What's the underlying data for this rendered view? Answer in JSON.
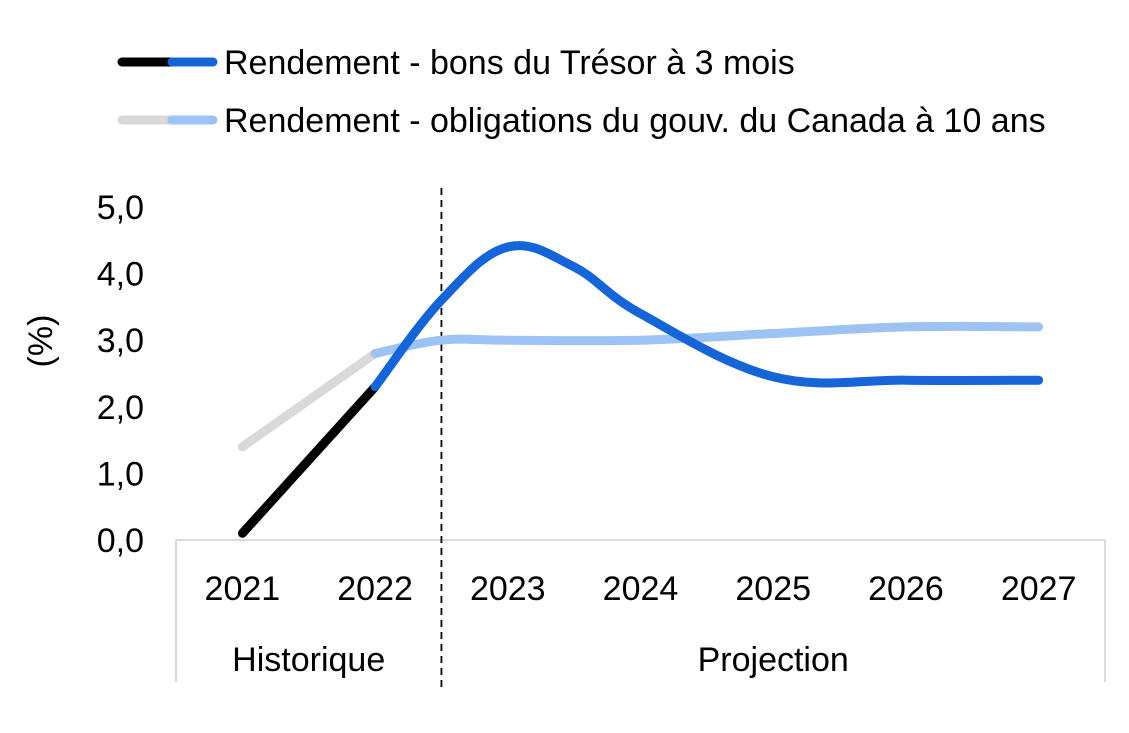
{
  "chart_data": {
    "type": "line",
    "ylabel": "(%)",
    "ylim": [
      0,
      5
    ],
    "yticks": [
      "0,0",
      "1,0",
      "2,0",
      "3,0",
      "4,0",
      "5,0"
    ],
    "categories": [
      "2021",
      "2022",
      "2023",
      "2024",
      "2025",
      "2026",
      "2027"
    ],
    "groups": [
      {
        "label": "Historique",
        "categories": [
          "2021",
          "2022"
        ]
      },
      {
        "label": "Projection",
        "categories": [
          "2023",
          "2024",
          "2025",
          "2026",
          "2027"
        ]
      }
    ],
    "series": [
      {
        "name": "Rendement - bons du Trésor à 3 mois",
        "historic_color": "#000000",
        "projection_color": "#1565d8",
        "x": [
          2021,
          2022,
          2022.5,
          2023,
          2023.5,
          2024,
          2025,
          2026,
          2027
        ],
        "values": [
          0.1,
          2.3,
          3.6,
          4.4,
          4.1,
          3.4,
          2.45,
          2.4,
          2.4
        ]
      },
      {
        "name": "Rendement - obligations du gouv. du Canada à 10 ans",
        "historic_color": "#d9d9d9",
        "projection_color": "#9dc3f5",
        "x": [
          2021,
          2022,
          2022.5,
          2023,
          2024,
          2025,
          2026,
          2027
        ],
        "values": [
          1.4,
          2.8,
          3.0,
          3.0,
          3.0,
          3.1,
          3.2,
          3.2
        ]
      }
    ],
    "legend_position": "top",
    "divider": "between 2022 and 2023 (dashed)"
  }
}
